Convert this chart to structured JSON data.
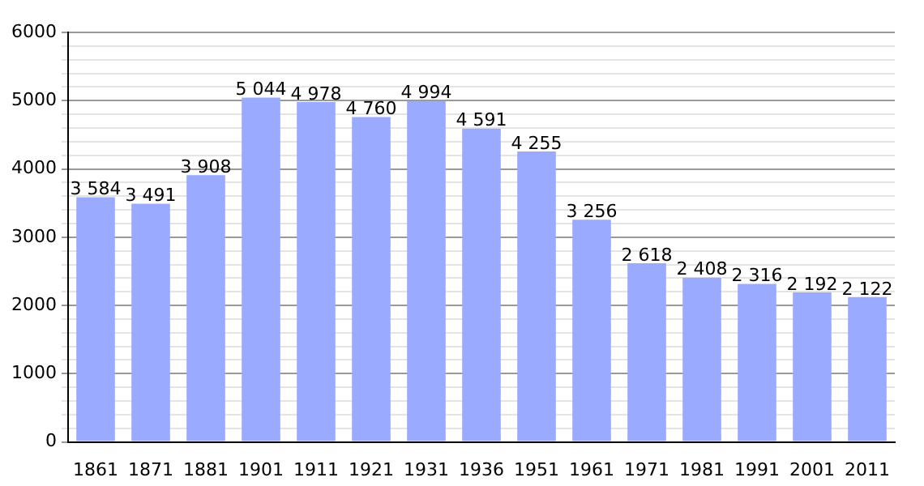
{
  "chart_data": {
    "type": "bar",
    "categories": [
      "1861",
      "1871",
      "1881",
      "1901",
      "1911",
      "1921",
      "1931",
      "1936",
      "1951",
      "1961",
      "1971",
      "1981",
      "1991",
      "2001",
      "2011"
    ],
    "values": [
      3584,
      3491,
      3908,
      5044,
      4978,
      4760,
      4994,
      4591,
      4255,
      3256,
      2618,
      2408,
      2316,
      2192,
      2122
    ],
    "value_labels": [
      "3 584",
      "3 491",
      "3 908",
      "5 044",
      "4 978",
      "4 760",
      "4 994",
      "4 591",
      "4 255",
      "3 256",
      "2 618",
      "2 408",
      "2 316",
      "2 192",
      "2 122"
    ],
    "color": "#99aaff",
    "ylim": [
      0,
      6000
    ],
    "yticks": [
      0,
      {
        "value": 200,
        "label": null
      },
      {
        "value": 400,
        "label": null
      },
      {
        "value": 600,
        "label": null
      },
      {
        "value": 800,
        "label": null
      },
      1000,
      {
        "value": 1200,
        "label": null
      },
      {
        "value": 1400,
        "label": null
      },
      {
        "value": 1600,
        "label": null
      },
      {
        "value": 1800,
        "label": null
      },
      2000,
      {
        "value": 2200,
        "label": null
      },
      {
        "value": 2400,
        "label": null
      },
      {
        "value": 2600,
        "label": null
      },
      {
        "value": 2800,
        "label": null
      },
      3000,
      {
        "value": 3200,
        "label": null
      },
      {
        "value": 3400,
        "label": null
      },
      {
        "value": 3600,
        "label": null
      },
      {
        "value": 3800,
        "label": null
      },
      4000,
      {
        "value": 4200,
        "label": null
      },
      {
        "value": 4400,
        "label": null
      },
      {
        "value": 4600,
        "label": null
      },
      {
        "value": 4800,
        "label": null
      },
      5000,
      {
        "value": 5200,
        "label": null
      },
      {
        "value": 5400,
        "label": null
      },
      {
        "value": 5600,
        "label": null
      },
      {
        "value": 5800,
        "label": null
      },
      6000
    ],
    "grid": "y",
    "legend": false
  }
}
